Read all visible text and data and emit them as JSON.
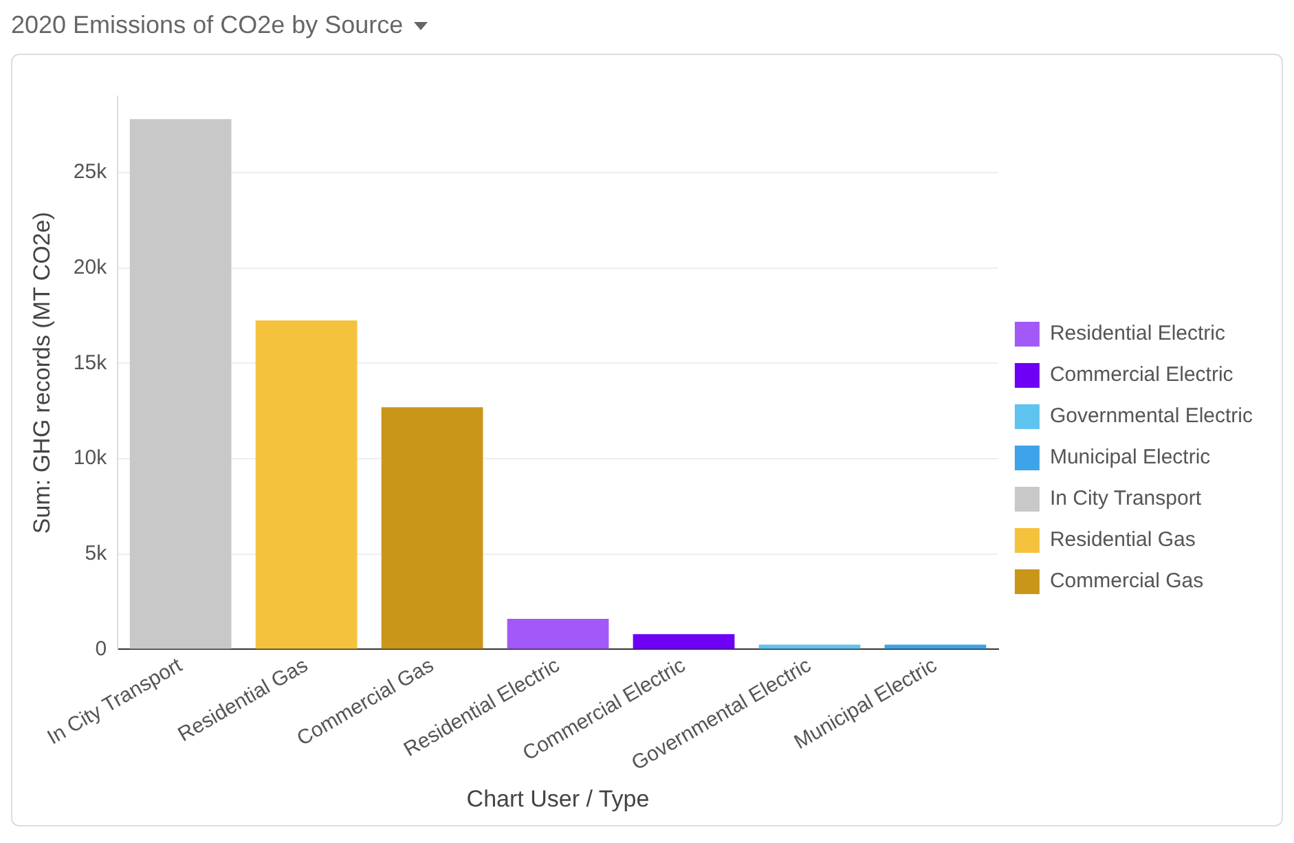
{
  "chart_data": {
    "type": "bar",
    "title": "2020 Emissions of CO2e by Source",
    "xlabel": "Chart User / Type",
    "ylabel": "Sum: GHG records (MT CO2e)",
    "categories": [
      "In City Transport",
      "Residential Gas",
      "Commercial Gas",
      "Residential Electric",
      "Commercial Electric",
      "Governmental Electric",
      "Municipal Electric"
    ],
    "series": [
      {
        "name": "Residential Electric",
        "color": "#a259f7",
        "values": [
          null,
          null,
          null,
          1600,
          null,
          null,
          null
        ]
      },
      {
        "name": "Commercial Electric",
        "color": "#6d00f5",
        "values": [
          null,
          null,
          null,
          null,
          800,
          null,
          null
        ]
      },
      {
        "name": "Governmental Electric",
        "color": "#5ec3ee",
        "values": [
          null,
          null,
          null,
          null,
          null,
          250,
          null
        ]
      },
      {
        "name": "Municipal Electric",
        "color": "#3ea3e8",
        "values": [
          null,
          null,
          null,
          null,
          null,
          null,
          250
        ]
      },
      {
        "name": "In City Transport",
        "color": "#c8c8c8",
        "values": [
          27800,
          null,
          null,
          null,
          null,
          null,
          null
        ]
      },
      {
        "name": "Residential Gas",
        "color": "#f5c23e",
        "values": [
          null,
          17250,
          null,
          null,
          null,
          null,
          null
        ]
      },
      {
        "name": "Commercial Gas",
        "color": "#c9961a",
        "values": [
          null,
          null,
          12700,
          null,
          null,
          null,
          null
        ]
      }
    ],
    "ylim": [
      0,
      29000
    ],
    "yticks": [
      {
        "value": 0,
        "label": "0"
      },
      {
        "value": 5000,
        "label": "5k"
      },
      {
        "value": 10000,
        "label": "10k"
      },
      {
        "value": 15000,
        "label": "15k"
      },
      {
        "value": 20000,
        "label": "20k"
      },
      {
        "value": 25000,
        "label": "25k"
      }
    ],
    "grid": "y",
    "legend": "right"
  }
}
